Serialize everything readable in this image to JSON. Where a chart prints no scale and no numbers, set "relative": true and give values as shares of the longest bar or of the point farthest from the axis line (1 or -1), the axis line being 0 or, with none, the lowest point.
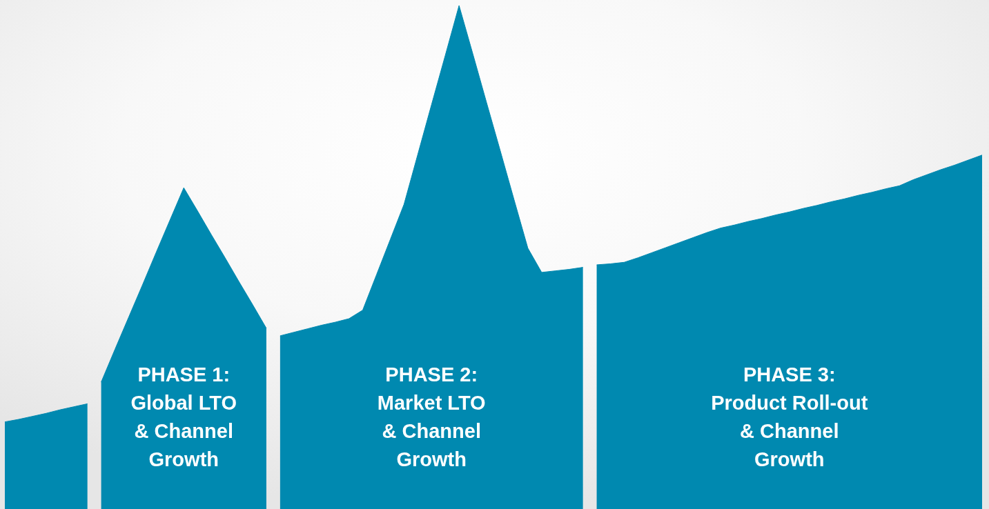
{
  "chart_data": {
    "type": "area",
    "relative": true,
    "categories": [
      null,
      null,
      null,
      null,
      null,
      null,
      null,
      null,
      null,
      null,
      null,
      null,
      null,
      null,
      null,
      null,
      null,
      null,
      null,
      null,
      null,
      null,
      null,
      null,
      null,
      null,
      null,
      null,
      null,
      null,
      null,
      null,
      null,
      null,
      null,
      null,
      null,
      null,
      null,
      null,
      null,
      null,
      null,
      null,
      null,
      null,
      null,
      null,
      null,
      null,
      null,
      null,
      null,
      null,
      null,
      null,
      null,
      null,
      null,
      null,
      null,
      null,
      null,
      null,
      null,
      null,
      null,
      null,
      null,
      null,
      null,
      null
    ],
    "series": [
      {
        "color": "#0089b0",
        "values": [
          0.173,
          0.178,
          0.184,
          0.19,
          0.197,
          0.203,
          0.209,
          null,
          null,
          null,
          null,
          null,
          null,
          null,
          null,
          null,
          null,
          null,
          null,
          null,
          null,
          null,
          null,
          null,
          null,
          null,
          null,
          null,
          null,
          null,
          null,
          null,
          null,
          null,
          null,
          null,
          null,
          null,
          null,
          null,
          null,
          null,
          null,
          null,
          null,
          null,
          null,
          null,
          null,
          null,
          null,
          null,
          null,
          null,
          null,
          null,
          null,
          null,
          null,
          null,
          null,
          null,
          null,
          null,
          null,
          null,
          null,
          null,
          null,
          null,
          null,
          null
        ]
      },
      {
        "color": "#0089b0",
        "values": [
          null,
          null,
          null,
          null,
          null,
          null,
          null,
          0.252,
          0.317,
          0.381,
          0.445,
          0.51,
          0.574,
          0.638,
          0.592,
          0.545,
          0.499,
          0.452,
          0.406,
          0.359,
          null,
          null,
          null,
          null,
          null,
          null,
          null,
          null,
          null,
          null,
          null,
          null,
          null,
          null,
          null,
          null,
          null,
          null,
          null,
          null,
          null,
          null,
          null,
          null,
          null,
          null,
          null,
          null,
          null,
          null,
          null,
          null,
          null,
          null,
          null,
          null,
          null,
          null,
          null,
          null,
          null,
          null,
          null,
          null,
          null,
          null,
          null,
          null,
          null,
          null,
          null,
          null
        ]
      },
      {
        "color": "#0089b0",
        "values": [
          null,
          null,
          null,
          null,
          null,
          null,
          null,
          null,
          null,
          null,
          null,
          null,
          null,
          null,
          null,
          null,
          null,
          null,
          null,
          null,
          0.344,
          0.351,
          0.358,
          0.365,
          0.371,
          0.378,
          0.395,
          0.465,
          0.535,
          0.605,
          0.704,
          0.803,
          0.901,
          1,
          0.904,
          0.807,
          0.711,
          0.614,
          0.518,
          0.47,
          0.473,
          0.476,
          0.48,
          null,
          null,
          null,
          null,
          null,
          null,
          null,
          null,
          null,
          null,
          null,
          null,
          null,
          null,
          null,
          null,
          null,
          null,
          null,
          null,
          null,
          null,
          null,
          null,
          null,
          null,
          null,
          null,
          null
        ]
      },
      {
        "color": "#0089b0",
        "values": [
          null,
          null,
          null,
          null,
          null,
          null,
          null,
          null,
          null,
          null,
          null,
          null,
          null,
          null,
          null,
          null,
          null,
          null,
          null,
          null,
          null,
          null,
          null,
          null,
          null,
          null,
          null,
          null,
          null,
          null,
          null,
          null,
          null,
          null,
          null,
          null,
          null,
          null,
          null,
          null,
          null,
          null,
          null,
          0.485,
          0.487,
          0.49,
          0.499,
          0.509,
          0.519,
          0.529,
          0.539,
          0.549,
          0.558,
          0.564,
          0.571,
          0.577,
          0.584,
          0.59,
          0.597,
          0.603,
          0.61,
          0.616,
          0.623,
          0.629,
          0.636,
          0.642,
          0.654,
          0.664,
          0.674,
          0.683,
          0.693,
          0.703
        ]
      }
    ],
    "annotations": [
      "PHASE 1:\nGlobal LTO\n& Channel\nGrowth",
      "PHASE 2:\nMarket LTO\n& Channel\nGrowth",
      "PHASE 3:\nProduct Roll-out\n& Channel\nGrowth"
    ]
  }
}
